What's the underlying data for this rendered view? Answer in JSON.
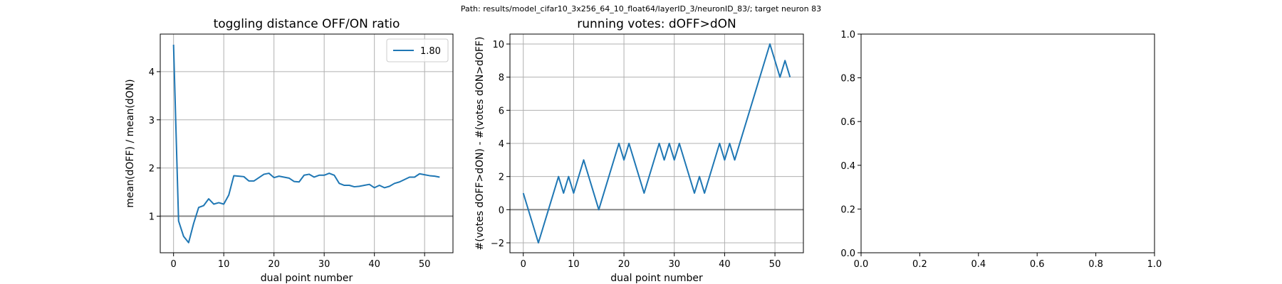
{
  "suptitle": "Path: results/model_cifar10_3x256_64_10_float64/layerID_3/neuronID_83/; target neuron 83",
  "colors": {
    "series": "#1f77b4",
    "grid": "#b0b0b0",
    "refline": "#808080",
    "spine": "#000000"
  },
  "chart_data": [
    {
      "type": "line",
      "title": "toggling distance OFF/ON ratio",
      "xlabel": "dual point number",
      "ylabel": "mean(dOFF) / mean(dON)",
      "xlim": [
        -2.65,
        55.65
      ],
      "ylim": [
        0.24,
        4.78
      ],
      "xticks": [
        0,
        10,
        20,
        30,
        40,
        50
      ],
      "yticks": [
        1,
        2,
        3,
        4
      ],
      "grid": true,
      "legend": {
        "position": "top-right",
        "entries": [
          "1.80"
        ]
      },
      "hline": 1,
      "series": [
        {
          "name": "1.80",
          "x": [
            0,
            1,
            2,
            3,
            4,
            5,
            6,
            7,
            8,
            9,
            10,
            11,
            12,
            13,
            14,
            15,
            16,
            17,
            18,
            19,
            20,
            21,
            22,
            23,
            24,
            25,
            26,
            27,
            28,
            29,
            30,
            31,
            32,
            33,
            34,
            35,
            36,
            37,
            38,
            39,
            40,
            41,
            42,
            43,
            44,
            45,
            46,
            47,
            48,
            49,
            50,
            51,
            52,
            53
          ],
          "values": [
            4.56,
            0.9,
            0.58,
            0.45,
            0.85,
            1.18,
            1.22,
            1.36,
            1.25,
            1.28,
            1.25,
            1.44,
            1.84,
            1.83,
            1.82,
            1.73,
            1.73,
            1.8,
            1.87,
            1.89,
            1.8,
            1.83,
            1.81,
            1.79,
            1.72,
            1.71,
            1.85,
            1.87,
            1.81,
            1.85,
            1.85,
            1.89,
            1.85,
            1.68,
            1.64,
            1.64,
            1.61,
            1.62,
            1.64,
            1.66,
            1.59,
            1.64,
            1.59,
            1.62,
            1.68,
            1.71,
            1.76,
            1.81,
            1.81,
            1.88,
            1.86,
            1.84,
            1.83,
            1.81
          ]
        }
      ]
    },
    {
      "type": "line",
      "title": "running votes: dOFF>dON",
      "xlabel": "dual point number",
      "ylabel": "#(votes dOFF>dON) - #(votes dON>dOFF)",
      "xlim": [
        -2.65,
        55.65
      ],
      "ylim": [
        -2.6,
        10.6
      ],
      "xticks": [
        0,
        10,
        20,
        30,
        40,
        50
      ],
      "yticks": [
        -2,
        0,
        2,
        4,
        6,
        8,
        10
      ],
      "grid": true,
      "hline": 0,
      "series": [
        {
          "x": [
            0,
            3,
            7,
            8,
            9,
            10,
            12,
            15,
            19,
            20,
            21,
            24,
            27,
            28,
            29,
            30,
            31,
            34,
            35,
            36,
            39,
            40,
            41,
            42,
            49,
            51,
            52,
            53
          ],
          "values": [
            1,
            -2,
            2,
            1,
            2,
            1,
            3,
            0,
            4,
            3,
            4,
            1,
            4,
            3,
            4,
            3,
            4,
            1,
            2,
            1,
            4,
            3,
            4,
            3,
            10,
            8,
            9,
            8
          ]
        }
      ]
    },
    {
      "type": "line",
      "title": "",
      "xlim": [
        0,
        1
      ],
      "ylim": [
        0,
        1
      ],
      "xticks": [
        0.0,
        0.2,
        0.4,
        0.6,
        0.8,
        1.0
      ],
      "xticklabels": [
        "0.0",
        "0.2",
        "0.4",
        "0.6",
        "0.8",
        "1.0"
      ],
      "yticks": [
        0.0,
        0.2,
        0.4,
        0.6,
        0.8,
        1.0
      ],
      "yticklabels": [
        "0.0",
        "0.2",
        "0.4",
        "0.6",
        "0.8",
        "1.0"
      ],
      "grid": false,
      "series": []
    }
  ]
}
